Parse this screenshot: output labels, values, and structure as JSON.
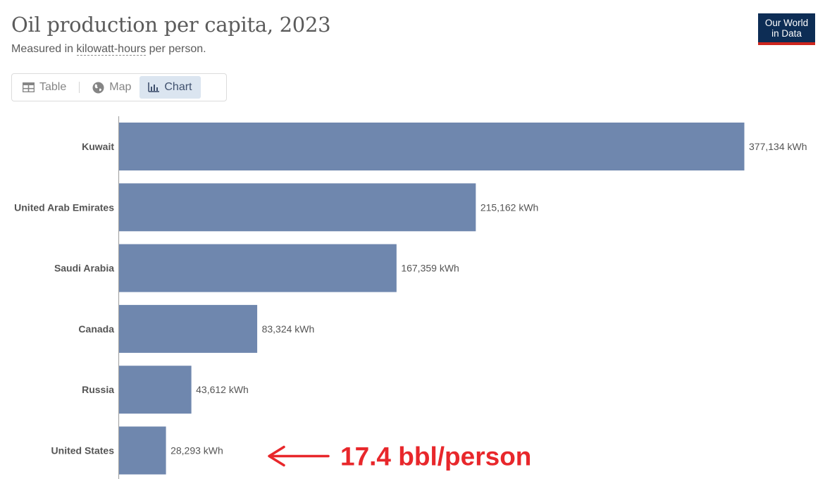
{
  "header": {
    "title": "Oil production per capita, 2023",
    "subtitle_prefix": "Measured in ",
    "subtitle_link": "kilowatt-hours",
    "subtitle_suffix": " per person.",
    "logo_line1": "Our World",
    "logo_line2": "in Data"
  },
  "tabs": [
    {
      "label": "Table",
      "icon": "table-icon",
      "active": false
    },
    {
      "label": "Map",
      "icon": "globe-icon",
      "active": false
    },
    {
      "label": "Chart",
      "icon": "bar-chart-icon",
      "active": true
    }
  ],
  "chart_data": {
    "type": "bar",
    "orientation": "horizontal",
    "categories": [
      "Kuwait",
      "United Arab Emirates",
      "Saudi Arabia",
      "Canada",
      "Russia",
      "United States"
    ],
    "values": [
      377134,
      215162,
      167359,
      83324,
      43612,
      28293
    ],
    "value_labels": [
      "377,134 kWh",
      "215,162 kWh",
      "167,359 kWh",
      "83,324 kWh",
      "43,612 kWh",
      "28,293 kWh"
    ],
    "bar_color": "#6f87ae",
    "annotation": {
      "text": "17.4 bbl/person",
      "target": "United States",
      "color": "#e8272b"
    }
  }
}
